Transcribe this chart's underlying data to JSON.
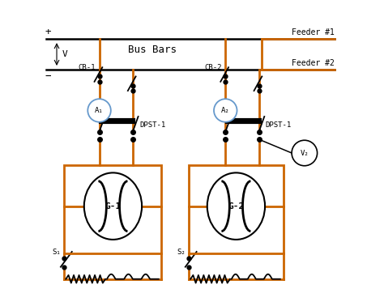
{
  "bg_color": "#ffffff",
  "line_color": "#000000",
  "orange_color": "#cc6600",
  "blue_circle_color": "#6699cc",
  "text_color": "#000000",
  "feeder1_label": "Feeder #1",
  "feeder2_label": "Feeder #2",
  "bus_label": "Bus Bars",
  "cb1_label": "CB-1",
  "cb2_label": "CB-2",
  "dpst1_label": "DPST-1",
  "dpst2_label": "DPST-1",
  "g1_label": "G-1",
  "g2_label": "G-2",
  "s1_label": "S₁",
  "s2_label": "S₂",
  "a1_label": "A₁",
  "a2_label": "A₂",
  "v2_label": "V₂",
  "v_label": "V"
}
